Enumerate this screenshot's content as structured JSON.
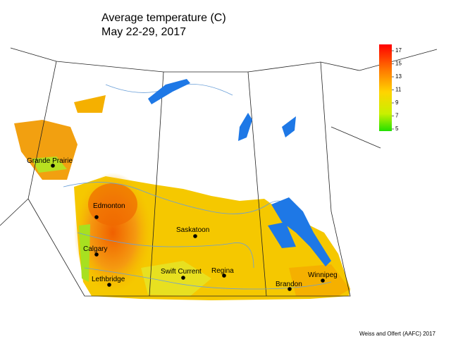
{
  "title": [
    "Average temperature (C)",
    "May 22-29, 2017"
  ],
  "legend": {
    "ticks": [
      5,
      7,
      9,
      11,
      13,
      15,
      17
    ]
  },
  "cities": [
    "Grande Prairie",
    "Edmonton",
    "Saskatoon",
    "Calgary",
    "Swift Current",
    "Regina",
    "Lethbridge",
    "Brandon",
    "Winnipeg"
  ],
  "credit": "Weiss and Olfert (AAFC) 2017"
}
